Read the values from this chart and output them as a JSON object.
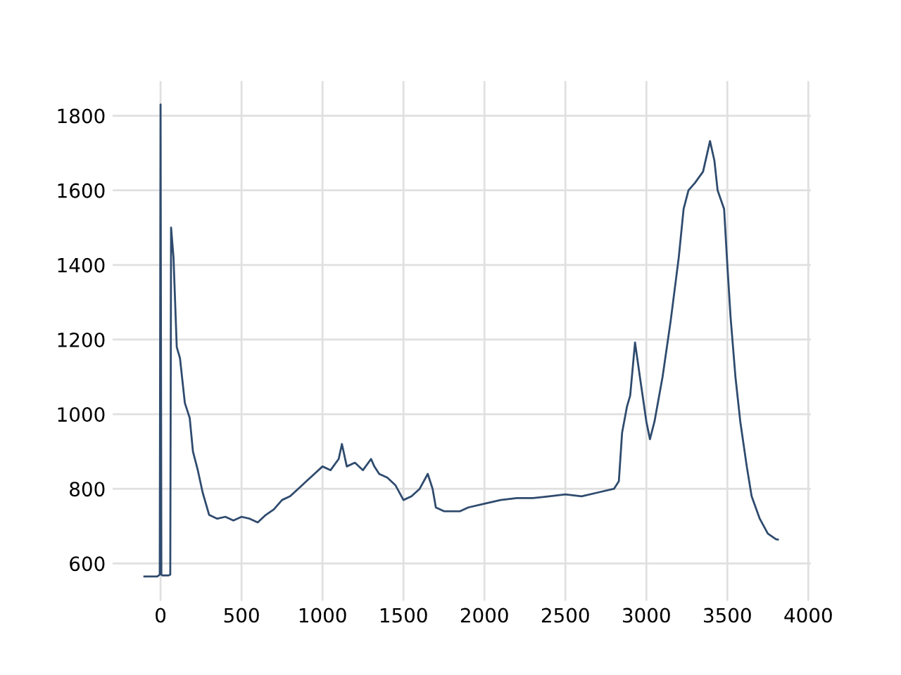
{
  "chart_data": {
    "type": "line",
    "x": [
      -100,
      -20,
      -5,
      0,
      5,
      10,
      50,
      60,
      65,
      80,
      100,
      120,
      150,
      180,
      200,
      230,
      260,
      300,
      350,
      400,
      450,
      500,
      550,
      600,
      650,
      700,
      750,
      800,
      850,
      900,
      950,
      1000,
      1050,
      1100,
      1120,
      1150,
      1200,
      1250,
      1300,
      1320,
      1350,
      1400,
      1450,
      1500,
      1550,
      1600,
      1650,
      1680,
      1700,
      1750,
      1800,
      1850,
      1900,
      2000,
      2100,
      2200,
      2300,
      2400,
      2500,
      2600,
      2700,
      2800,
      2830,
      2850,
      2880,
      2900,
      2930,
      2960,
      3000,
      3022,
      3050,
      3100,
      3150,
      3200,
      3230,
      3260,
      3300,
      3350,
      3393,
      3420,
      3440,
      3480,
      3500,
      3520,
      3550,
      3580,
      3620,
      3650,
      3700,
      3750,
      3800,
      3812
    ],
    "series": [
      {
        "color": "#2f4b6e",
        "values": [
          565,
          565,
          570,
          1830,
          570,
          568,
          568,
          570,
          1500,
          1420,
          1180,
          1150,
          1030,
          990,
          900,
          850,
          790,
          730,
          720,
          725,
          715,
          725,
          720,
          710,
          730,
          745,
          770,
          780,
          800,
          820,
          840,
          860,
          850,
          880,
          920,
          860,
          870,
          850,
          880,
          860,
          840,
          830,
          810,
          770,
          780,
          800,
          840,
          800,
          750,
          740,
          740,
          740,
          750,
          760,
          770,
          775,
          775,
          780,
          785,
          780,
          790,
          800,
          820,
          950,
          1020,
          1050,
          1192,
          1100,
          980,
          933,
          980,
          1100,
          1250,
          1420,
          1550,
          1600,
          1620,
          1650,
          1732,
          1680,
          1600,
          1550,
          1400,
          1260,
          1100,
          980,
          860,
          780,
          720,
          680,
          665,
          664
        ]
      }
    ],
    "xlim": [
      -296,
      4016
    ],
    "ylim": [
      500,
      1893
    ],
    "xticks": [
      0,
      500,
      1000,
      1500,
      2000,
      2500,
      3000,
      3500,
      4000
    ],
    "yticks": [
      600,
      800,
      1000,
      1200,
      1400,
      1600,
      1800
    ],
    "grid": true
  }
}
